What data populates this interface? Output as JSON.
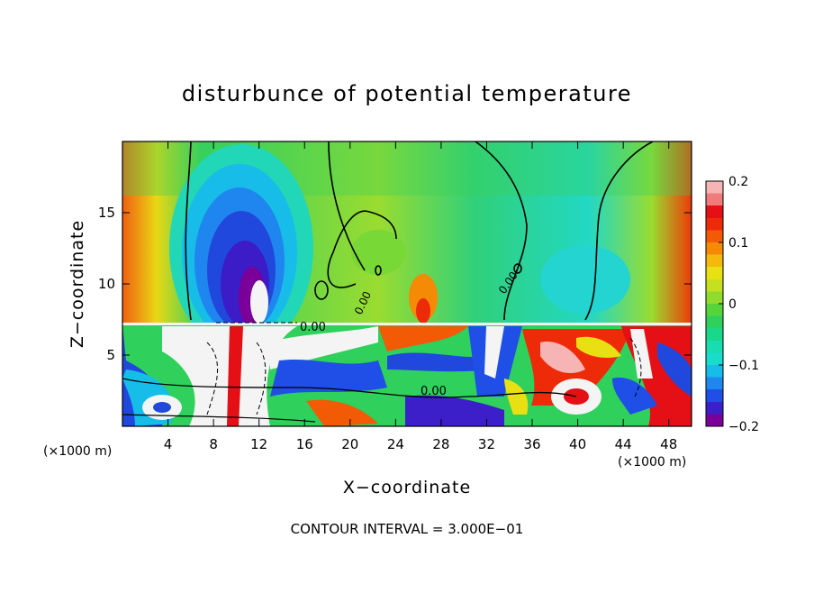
{
  "chart_data": {
    "type": "heatmap",
    "title": "disturbunce of potential temperature",
    "xlabel": "X−coordinate",
    "ylabel": "Z−coordinate",
    "x_unit": "(×1000 m)",
    "y_unit": "(×1000 m)",
    "xlim": [
      0,
      50
    ],
    "ylim": [
      0,
      20
    ],
    "x_ticks": [
      4,
      8,
      12,
      16,
      20,
      24,
      28,
      32,
      36,
      40,
      44,
      48
    ],
    "y_ticks": [
      5,
      10,
      15
    ],
    "colorbar": {
      "range": [
        -0.2,
        0.2
      ],
      "tick_values": [
        0.2,
        0.1,
        0,
        -0.1,
        -0.2
      ],
      "tick_labels": [
        "0.2",
        "0.1",
        "0",
        "−0.1",
        "−0.2"
      ],
      "colors": [
        "#7b0099",
        "#3c1fc8",
        "#1f4fe6",
        "#1f88f0",
        "#15bde8",
        "#18dccc",
        "#18ddb0",
        "#19d889",
        "#2fd05c",
        "#56d53b",
        "#8fdc2c",
        "#c4e01f",
        "#e8e013",
        "#f5b90d",
        "#f48a06",
        "#f25a05",
        "#ee2b08",
        "#e41015",
        "#f17b7b",
        "#f7b4b4"
      ]
    },
    "contour_labels": [
      {
        "text": "0.00",
        "x": 15.6,
        "y": 7.0
      },
      {
        "text": "0.00",
        "x": 21.4,
        "y": 9.3
      },
      {
        "text": "0.00",
        "x": 34.6,
        "y": 10.6
      },
      {
        "text": "0.00",
        "x": 27.8,
        "y": 2.4
      }
    ],
    "footnote": "CONTOUR INTERVAL = 3.000E−01"
  }
}
